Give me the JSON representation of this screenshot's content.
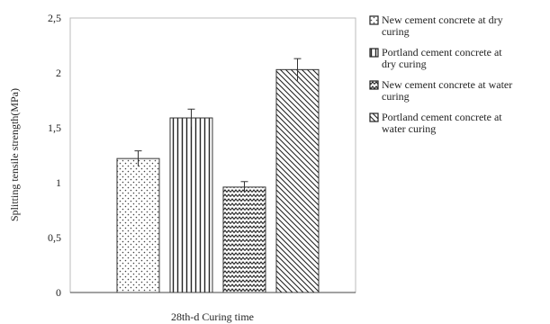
{
  "chart_data": {
    "type": "bar",
    "categories": [
      "28th-d Curing time"
    ],
    "xlabel": "28th-d Curing time",
    "ylabel": "Splitting tensile strength(MPa)",
    "ylim": [
      0,
      2.5
    ],
    "yticks": [
      "0",
      "0,5",
      "1",
      "1,5",
      "2",
      "2,5"
    ],
    "grid": false,
    "legend_position": "right",
    "series": [
      {
        "name": "New cement concrete at dry curing",
        "legend_lines": [
          "New cement concrete at dry",
          "curing"
        ],
        "values": [
          1.22
        ],
        "error": [
          0.07
        ],
        "pattern": "dots"
      },
      {
        "name": "Portland cement concrete at dry curing",
        "legend_lines": [
          "Portland cement concrete at",
          "dry curing"
        ],
        "values": [
          1.59
        ],
        "error": [
          0.08
        ],
        "pattern": "vertical-lines"
      },
      {
        "name": "New cement concrete at water curing",
        "legend_lines": [
          "New cement concrete at water",
          "curing"
        ],
        "values": [
          0.96
        ],
        "error": [
          0.05
        ],
        "pattern": "zigzag"
      },
      {
        "name": "Portland cement concrete at water curing",
        "legend_lines": [
          "Portland cement concrete at",
          "water curing"
        ],
        "values": [
          2.03
        ],
        "error": [
          0.1
        ],
        "pattern": "diagonal"
      }
    ]
  }
}
